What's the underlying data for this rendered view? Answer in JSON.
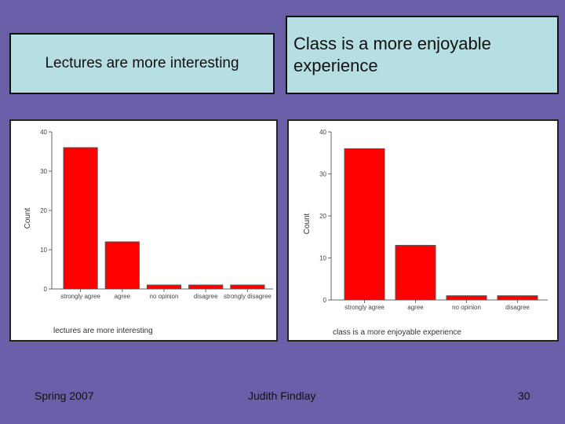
{
  "slide": {
    "title_left": "Lectures are more interesting",
    "title_right": "Class is a more enjoyable experience",
    "footer_left": "Spring 2007",
    "footer_center": "Judith Findlay",
    "footer_right": "30"
  },
  "colors": {
    "bar": "#ff0000",
    "bar_edge": "#555555",
    "background": "#6a5fa8",
    "title_box": "#b6dfe3"
  },
  "chart_data": [
    {
      "type": "bar",
      "categories": [
        "strongly agree",
        "agree",
        "no opinion",
        "disagree",
        "strongly disagree"
      ],
      "values": [
        36,
        12,
        1,
        1,
        1
      ],
      "xlabel": "lectures are more interesting",
      "ylabel": "Count",
      "ylim": [
        0,
        40
      ],
      "yticks": [
        0,
        10,
        20,
        30,
        40
      ],
      "grid": false
    },
    {
      "type": "bar",
      "categories": [
        "strongly agree",
        "agree",
        "no opinion",
        "disagree"
      ],
      "values": [
        36,
        13,
        1,
        1
      ],
      "xlabel": "class is a more enjoyable experience",
      "ylabel": "Count",
      "ylim": [
        0,
        40
      ],
      "yticks": [
        0,
        10,
        20,
        30,
        40
      ],
      "grid": false
    }
  ]
}
